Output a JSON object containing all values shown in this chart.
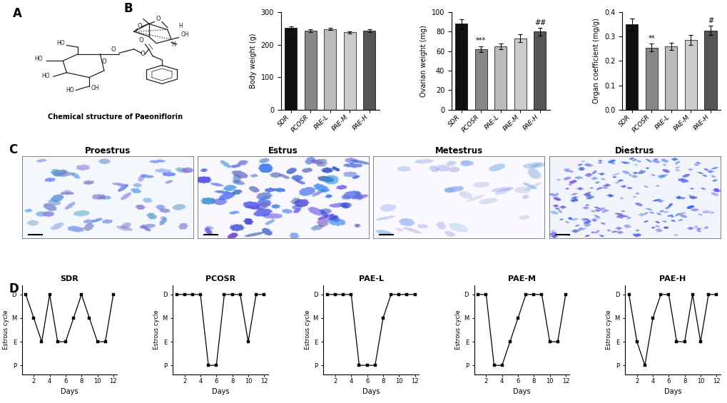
{
  "panel_B": {
    "categories": [
      "SDR",
      "PCOSR",
      "PAE-L",
      "PAE-M",
      "PAE-H"
    ],
    "body_weight": {
      "means": [
        252,
        243,
        248,
        238,
        243
      ],
      "sems": [
        5,
        4,
        4,
        3,
        4
      ],
      "ylabel": "Body weight (g)",
      "ylim": [
        0,
        300
      ],
      "yticks": [
        0,
        100,
        200,
        300
      ]
    },
    "ovarian_weight": {
      "means": [
        88,
        62,
        65,
        73,
        80
      ],
      "sems": [
        5,
        3,
        3,
        4,
        4
      ],
      "ylabel": "Ovarian weight (mg)",
      "ylim": [
        0,
        100
      ],
      "yticks": [
        0,
        20,
        40,
        60,
        80,
        100
      ],
      "ann_pcosr": "***",
      "ann_paeh": "##"
    },
    "organ_coeff": {
      "means": [
        0.35,
        0.255,
        0.26,
        0.285,
        0.325
      ],
      "sems": [
        0.025,
        0.015,
        0.015,
        0.02,
        0.018
      ],
      "ylabel": "Organ coefficient (mg/g)",
      "ylim": [
        0.0,
        0.4
      ],
      "yticks": [
        0.0,
        0.1,
        0.2,
        0.3,
        0.4
      ],
      "ann_pcosr": "**",
      "ann_paeh": "#"
    },
    "bar_colors": [
      "#111111",
      "#888888",
      "#bbbbbb",
      "#cccccc",
      "#555555"
    ]
  },
  "panel_D": {
    "groups": [
      "SDR",
      "PCOSR",
      "PAE-L",
      "PAE-M",
      "PAE-H"
    ],
    "ytick_labels": [
      "P",
      "E",
      "M",
      "D"
    ],
    "ytick_vals": [
      0,
      1,
      2,
      3
    ],
    "days": [
      1,
      2,
      3,
      4,
      5,
      6,
      7,
      8,
      9,
      10,
      11,
      12
    ],
    "SDR": [
      3,
      2,
      1,
      3,
      1,
      1,
      2,
      3,
      2,
      1,
      1,
      3
    ],
    "PCOSR": [
      3,
      3,
      3,
      3,
      0,
      0,
      3,
      3,
      3,
      1,
      3,
      3
    ],
    "PAE-L": [
      3,
      3,
      3,
      3,
      0,
      0,
      0,
      2,
      3,
      3,
      3,
      3
    ],
    "PAE-M": [
      3,
      3,
      0,
      0,
      1,
      2,
      3,
      3,
      3,
      1,
      1,
      3
    ],
    "PAE-H": [
      3,
      1,
      0,
      2,
      3,
      3,
      1,
      1,
      3,
      1,
      3,
      3
    ]
  },
  "label_A": "A",
  "label_B": "B",
  "label_C": "C",
  "label_D": "D",
  "chem_caption": "Chemical structure of Paeoniflorin",
  "cycle_stages": [
    "Proestrus",
    "Estrus",
    "Metestrus",
    "Diestrus"
  ],
  "bg_color": "#ffffff"
}
